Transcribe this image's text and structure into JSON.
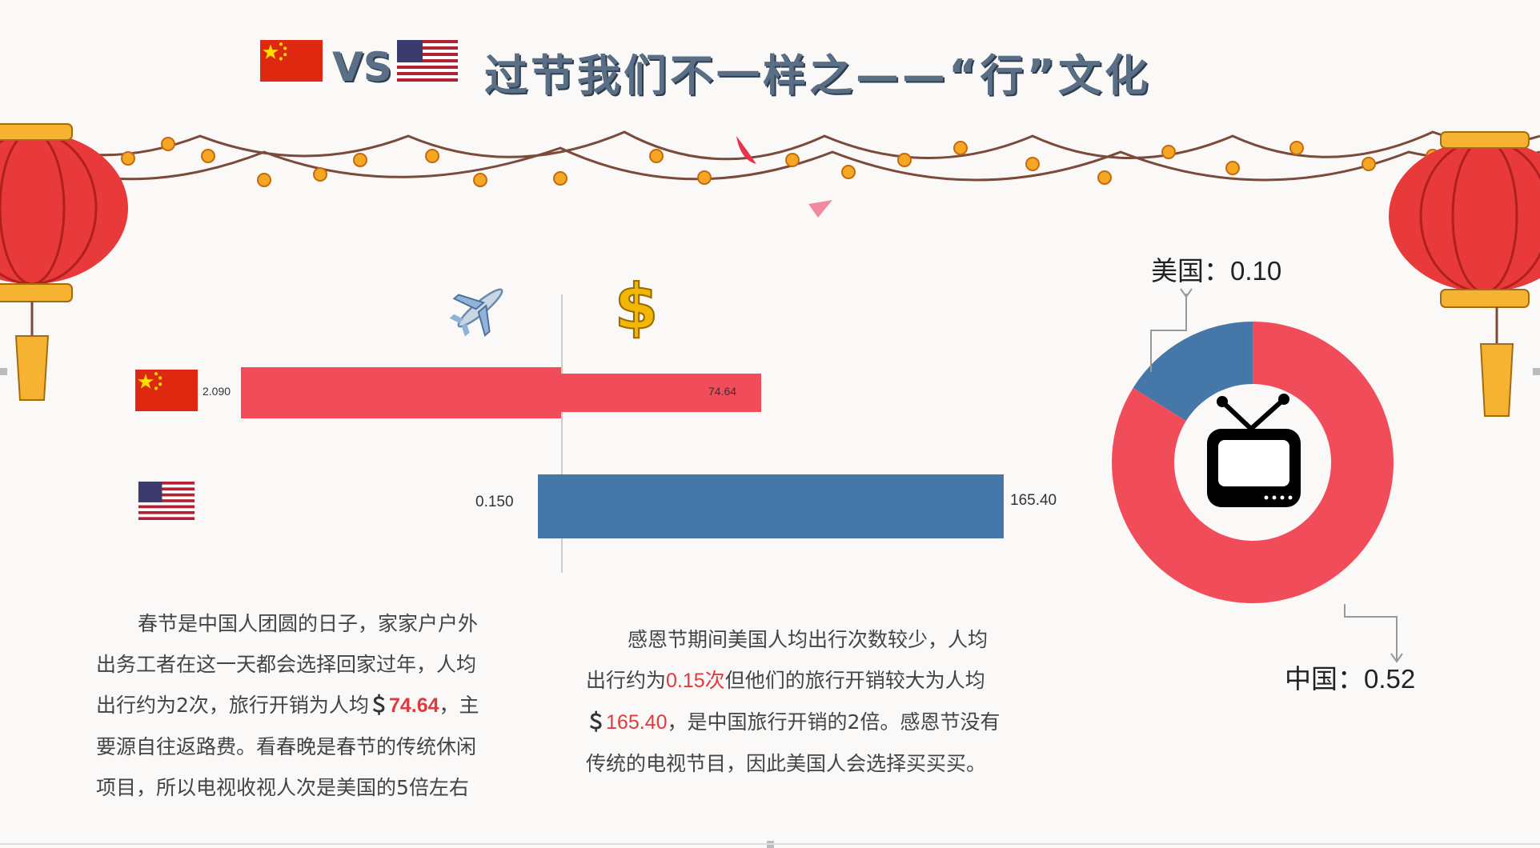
{
  "header": {
    "vs": "VS",
    "title": "过节我们不一样之——“行”文化"
  },
  "icons": {
    "travel": "airplane-icon",
    "spending": "dollar-icon",
    "tv": "tv-icon"
  },
  "colors": {
    "china": "#f04c5a",
    "usa": "#4677a9",
    "highlight": "#e0393e"
  },
  "chart_data": [
    {
      "type": "bar",
      "orientation": "horizontal-diverging",
      "categories": [
        "china-flag",
        "usa-flag"
      ],
      "series": [
        {
          "values": [
            2.09,
            0.15
          ]
        },
        {
          "values": [
            74.64,
            165.4
          ]
        }
      ],
      "data_labels": {
        "left": [
          "2.090",
          "0.150"
        ],
        "right": [
          "74.64",
          "165.40"
        ]
      }
    },
    {
      "type": "pie",
      "style": "donut",
      "slices": [
        {
          "label": "美国：",
          "value": 0.1,
          "display": "0.10"
        },
        {
          "label": "中国：",
          "value": 0.52,
          "display": "0.52"
        }
      ]
    }
  ],
  "paragraphs": {
    "china": {
      "l1": "春节是中国人团圆的日子，家家户户外",
      "l2": "出务工者在这一天都会选择回家过年，人均",
      "l3a": "出行约为2次，旅行开销为人均",
      "l3_money": "＄",
      "l3_value": "74.64",
      "l3b": "，主",
      "l4": "要源自往返路费。看春晚是春节的传统休闲",
      "l5": "项目，所以电视收视人次是美国的5倍左右"
    },
    "usa": {
      "l1": "感恩节期间美国人均出行次数较少，人均",
      "l2a": "出行约为",
      "l2_value": "0.15次",
      "l2b": "但他们的旅行开销较大为人均",
      "l3_money": "＄",
      "l3_value": "165.40",
      "l3b": "，是中国旅行开销的2倍。感恩节没有",
      "l4": "传统的电视节目，因此美国人会选择买买买。"
    }
  }
}
